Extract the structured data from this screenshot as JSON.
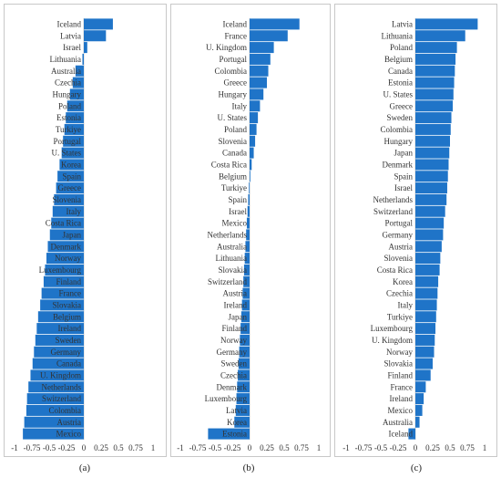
{
  "colors": {
    "bar": "#1f74c8",
    "panel_border": "#c8c8c8",
    "axis": "#d0d0d0",
    "text": "#333333"
  },
  "captions": [
    "(a)",
    "(b)",
    "(c)"
  ],
  "chart_data": [
    {
      "type": "bar",
      "orientation": "horizontal",
      "xlim": [
        -1,
        1
      ],
      "xticks": [
        "-1",
        "-0.75",
        "-0.5",
        "-0.25",
        "0",
        "0.25",
        "0.5",
        "0.75",
        "1"
      ],
      "grid": false,
      "categories": [
        "Iceland",
        "Latvia",
        "Israel",
        "Lithuania",
        "Australia",
        "Czechia",
        "Hungary",
        "Poland",
        "Estonia",
        "Turkiye",
        "Portugal",
        "U. States",
        "Korea",
        "Spain",
        "Greece",
        "Slovenia",
        "Italy",
        "Costa Rica",
        "Japan",
        "Denmark",
        "Norway",
        "Luxembourg",
        "Finland",
        "France",
        "Slovakia",
        "Belgium",
        "Ireland",
        "Sweden",
        "Germany",
        "Canada",
        "U. Kingdom",
        "Netherlands",
        "Switzerland",
        "Colombia",
        "Austria",
        "Mexico"
      ],
      "values": [
        0.42,
        0.32,
        0.05,
        -0.02,
        -0.12,
        -0.16,
        -0.2,
        -0.24,
        -0.26,
        -0.28,
        -0.3,
        -0.32,
        -0.35,
        -0.38,
        -0.4,
        -0.43,
        -0.45,
        -0.47,
        -0.49,
        -0.52,
        -0.54,
        -0.56,
        -0.58,
        -0.61,
        -0.63,
        -0.66,
        -0.68,
        -0.7,
        -0.72,
        -0.74,
        -0.77,
        -0.8,
        -0.82,
        -0.83,
        -0.86,
        -0.88
      ]
    },
    {
      "type": "bar",
      "orientation": "horizontal",
      "xlim": [
        -1,
        1
      ],
      "xticks": [
        "-1",
        "-0.75",
        "-0.5",
        "-0.25",
        "0",
        "0.25",
        "0.5",
        "0.75",
        "1"
      ],
      "grid": false,
      "categories": [
        "Iceland",
        "France",
        "U. Kingdom",
        "Portugal",
        "Colombia",
        "Greece",
        "Hungary",
        "Italy",
        "U. States",
        "Poland",
        "Slovenia",
        "Canada",
        "Costa Rica",
        "Belgium",
        "Turkiye",
        "Spain",
        "Israel",
        "Mexico",
        "Netherlands",
        "Australia",
        "Lithuania",
        "Slovakia",
        "Switzerland",
        "Austria",
        "Ireland",
        "Japan",
        "Finland",
        "Norway",
        "Germany",
        "Sweden",
        "Czechia",
        "Denmark",
        "Luxembourg",
        "Latvia",
        "Korea",
        "Estonia"
      ],
      "values": [
        0.72,
        0.55,
        0.35,
        0.3,
        0.27,
        0.25,
        0.2,
        0.15,
        0.12,
        0.1,
        0.08,
        0.06,
        0.03,
        0.01,
        -0.01,
        -0.02,
        -0.03,
        -0.04,
        -0.05,
        -0.06,
        -0.07,
        -0.08,
        -0.09,
        -0.1,
        -0.11,
        -0.12,
        -0.13,
        -0.14,
        -0.15,
        -0.16,
        -0.17,
        -0.18,
        -0.19,
        -0.2,
        -0.22,
        -0.6
      ]
    },
    {
      "type": "bar",
      "orientation": "horizontal",
      "xlim": [
        -1,
        1
      ],
      "xticks": [
        "-1",
        "-0.75",
        "-0.5",
        "-0.25",
        "0",
        "0.25",
        "0.5",
        "0.75",
        "1"
      ],
      "grid": false,
      "categories": [
        "Latvia",
        "Lithuania",
        "Poland",
        "Belgium",
        "Canada",
        "Estonia",
        "U. States",
        "Greece",
        "Sweden",
        "Colombia",
        "Hungary",
        "Japan",
        "Denmark",
        "Spain",
        "Israel",
        "Netherlands",
        "Switzerland",
        "Portugal",
        "Germany",
        "Austria",
        "Slovenia",
        "Costa Rica",
        "Korea",
        "Czechia",
        "Italy",
        "Turkiye",
        "Luxembourg",
        "U. Kingdom",
        "Norway",
        "Slovakia",
        "Finland",
        "France",
        "Ireland",
        "Mexico",
        "Australia",
        "Iceland"
      ],
      "values": [
        0.9,
        0.72,
        0.6,
        0.58,
        0.57,
        0.56,
        0.55,
        0.54,
        0.52,
        0.51,
        0.5,
        0.49,
        0.48,
        0.47,
        0.46,
        0.45,
        0.43,
        0.41,
        0.4,
        0.38,
        0.36,
        0.35,
        0.33,
        0.32,
        0.31,
        0.3,
        0.29,
        0.28,
        0.27,
        0.25,
        0.22,
        0.15,
        0.12,
        0.1,
        0.06,
        -0.1
      ]
    }
  ]
}
